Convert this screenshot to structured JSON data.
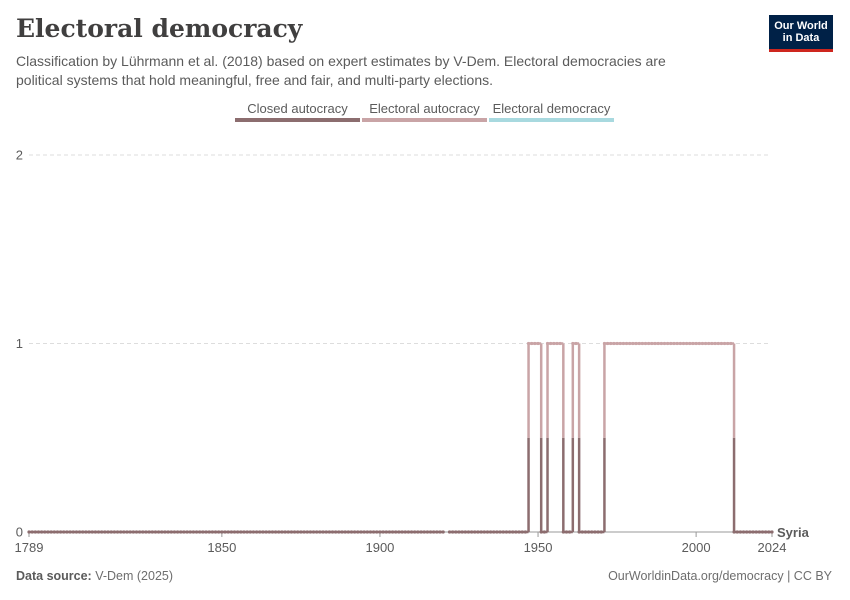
{
  "header": {
    "title": "Electoral democracy",
    "subtitle": "Classification by Lührmann et al. (2018) based on expert estimates by V-Dem. Electoral democracies are political systems that hold meaningful, free and fair, and multi-party elections.",
    "logo_line1": "Our World",
    "logo_line2": "in Data"
  },
  "legend": {
    "items": [
      {
        "label": "Closed autocracy",
        "color": "#8c6d6f"
      },
      {
        "label": "Electoral autocracy",
        "color": "#c9a4a6"
      },
      {
        "label": "Electoral democracy",
        "color": "#a8d9df"
      }
    ]
  },
  "footer": {
    "source_label": "Data source:",
    "source_value": "V-Dem (2025)",
    "url": "OurWorldinData.org/democracy | CC BY"
  },
  "chart_data": {
    "type": "line",
    "title": "Electoral democracy",
    "xlabel": "",
    "ylabel": "",
    "xlim": [
      1789,
      2024
    ],
    "ylim": [
      0,
      2
    ],
    "x_ticks": [
      "1789",
      "1850",
      "1900",
      "1950",
      "2000",
      "2024"
    ],
    "y_ticks": [
      "0",
      "1",
      "2"
    ],
    "grid": "horizontal dashed",
    "legend_position": "top",
    "series": [
      {
        "name": "Syria",
        "color_low": "#8c6d6f",
        "color_high": "#c9a4a6",
        "gaps": [
          [
            1920,
            1922
          ]
        ],
        "segments": [
          {
            "from": 1789,
            "to": 1946,
            "value": 0
          },
          {
            "from": 1947,
            "to": 1950,
            "value": 1
          },
          {
            "from": 1951,
            "to": 1952,
            "value": 0
          },
          {
            "from": 1953,
            "to": 1957,
            "value": 1
          },
          {
            "from": 1958,
            "to": 1960,
            "value": 0
          },
          {
            "from": 1961,
            "to": 1962,
            "value": 1
          },
          {
            "from": 1963,
            "to": 1970,
            "value": 0
          },
          {
            "from": 1971,
            "to": 2011,
            "value": 1
          },
          {
            "from": 2012,
            "to": 2024,
            "value": 0
          }
        ]
      }
    ]
  }
}
